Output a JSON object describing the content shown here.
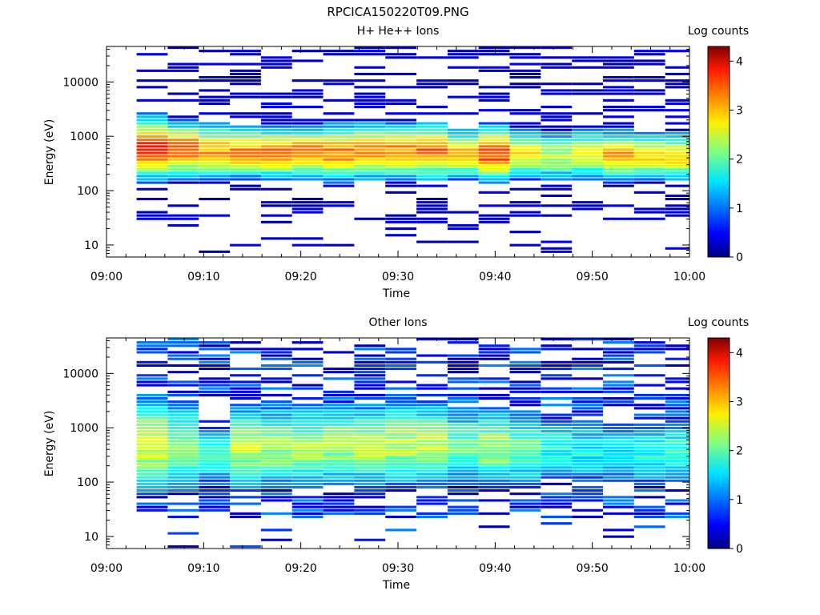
{
  "figure_title": "RPCICA150220T09.PNG",
  "chart_data": [
    {
      "type": "heatmap",
      "title": "H+ He++ Ions",
      "xlabel": "Time",
      "ylabel": "Energy (eV)",
      "colorbar_label": "Log counts",
      "x_ticks": [
        "09:00",
        "09:10",
        "09:20",
        "09:30",
        "09:40",
        "09:50",
        "10:00"
      ],
      "x_range_minutes": [
        0,
        60
      ],
      "y_scale": "log",
      "ylim": [
        6,
        45000
      ],
      "y_ticks": [
        "10",
        "100",
        "1000",
        "10000"
      ],
      "colorbar_ticks": [
        "0",
        "1",
        "2",
        "3",
        "4"
      ],
      "clim": [
        0,
        4.3
      ],
      "colormap": "jet",
      "time_bins": [
        "09:03",
        "09:06",
        "09:09",
        "09:12",
        "09:16",
        "09:19",
        "09:22",
        "09:25",
        "09:28",
        "09:32",
        "09:35",
        "09:38",
        "09:41",
        "09:44",
        "09:47",
        "09:51",
        "09:54",
        "09:57",
        "10:00"
      ],
      "peak_energy_eV": [
        600,
        560,
        520,
        500,
        480,
        490,
        500,
        520,
        510,
        520,
        470,
        470,
        470,
        420,
        450,
        430,
        420,
        420,
        430
      ],
      "peak_log_counts": [
        3.6,
        3.4,
        3.1,
        3.2,
        3.3,
        3.3,
        3.2,
        3.3,
        3.2,
        3.3,
        3.0,
        3.5,
        2.7,
        2.4,
        2.6,
        3.0,
        2.8,
        2.8,
        2.6
      ],
      "band_width_decades": [
        0.55,
        0.5,
        0.5,
        0.45,
        0.45,
        0.45,
        0.5,
        0.5,
        0.5,
        0.5,
        0.45,
        0.5,
        0.45,
        0.45,
        0.45,
        0.45,
        0.45,
        0.45,
        0.5
      ],
      "grid": false
    },
    {
      "type": "heatmap",
      "title": "Other Ions",
      "xlabel": "Time",
      "ylabel": "Energy (eV)",
      "colorbar_label": "Log counts",
      "x_ticks": [
        "09:00",
        "09:10",
        "09:20",
        "09:30",
        "09:40",
        "09:50",
        "10:00"
      ],
      "x_range_minutes": [
        0,
        60
      ],
      "y_scale": "log",
      "ylim": [
        6,
        45000
      ],
      "y_ticks": [
        "10",
        "100",
        "1000",
        "10000"
      ],
      "colorbar_ticks": [
        "0",
        "1",
        "2",
        "3",
        "4"
      ],
      "clim": [
        0,
        4.3
      ],
      "colormap": "jet",
      "time_bins": [
        "09:03",
        "09:06",
        "09:09",
        "09:12",
        "09:16",
        "09:19",
        "09:22",
        "09:25",
        "09:28",
        "09:32",
        "09:35",
        "09:38",
        "09:41",
        "09:44",
        "09:47",
        "09:51",
        "09:54",
        "09:57",
        "10:00"
      ],
      "peak_energy_eV": [
        500,
        480,
        300,
        420,
        450,
        440,
        480,
        470,
        480,
        470,
        450,
        430,
        420,
        400,
        380,
        360,
        350,
        380,
        420
      ],
      "peak_log_counts": [
        2.6,
        2.2,
        1.8,
        2.4,
        2.3,
        2.3,
        2.3,
        2.4,
        2.4,
        2.5,
        2.1,
        2.3,
        2.0,
        1.7,
        1.6,
        1.6,
        1.7,
        1.8,
        2.1
      ],
      "band_width_decades": [
        0.9,
        0.9,
        0.6,
        0.8,
        0.8,
        0.8,
        0.8,
        0.8,
        0.8,
        0.8,
        0.75,
        0.8,
        0.75,
        0.7,
        0.7,
        0.7,
        0.7,
        0.7,
        0.9
      ],
      "grid": false
    }
  ]
}
